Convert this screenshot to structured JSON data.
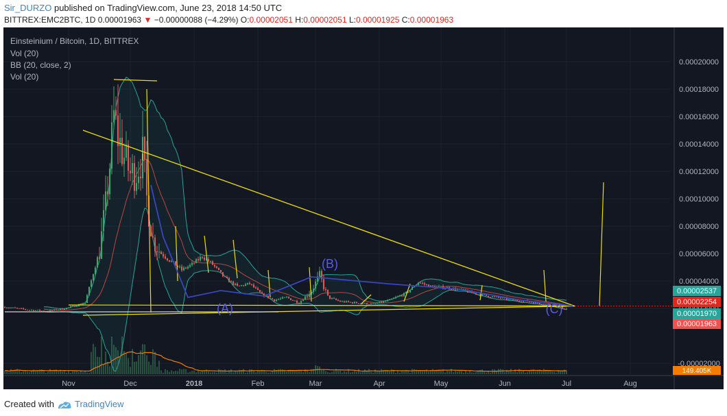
{
  "header": {
    "author": "Sir_DURZO",
    "published_text": "published on TradingView.com, June 23, 2018 14:50 UTC"
  },
  "ticker": {
    "symbol": "BITTREX:EMC2BTC, 1D",
    "last": "0.00001963",
    "change": "−0.00000088 (−4.29%)",
    "o_label": "O:",
    "o": "0.00002051",
    "h_label": "H:",
    "h": "0.00002051",
    "l_label": "L:",
    "l": "0.00001925",
    "c_label": "C:",
    "c": "0.00001963",
    "down_color": "#e0281f"
  },
  "legend": {
    "title": "Einsteinium / Bitcoin, 1D, BITTREX",
    "vol1": "Vol (20)",
    "bb": "BB (20, close, 2)",
    "vol2": "Vol (20)"
  },
  "footer": {
    "created_with": "Created with",
    "brand": "TradingView"
  },
  "chart_data": {
    "type": "line",
    "title": "Einsteinium / Bitcoin, 1D, BITTREX",
    "x_ticks": [
      "Nov",
      "Dec",
      "2018",
      "Feb",
      "Mar",
      "Apr",
      "May",
      "Jun",
      "Jul",
      "Aug"
    ],
    "y_ticks": [
      "0.00020000",
      "0.00018000",
      "0.00016000",
      "0.00014000",
      "0.00012000",
      "0.00010000",
      "0.00008000",
      "0.00006000",
      "0.00004000",
      "0.00002000",
      "-0.00002000"
    ],
    "ylim": [
      -2.5e-05,
      0.000215
    ],
    "x_range_days": [
      -31,
      292
    ],
    "series": [
      {
        "values": [
          [
            -31,
            2.1e-05
          ],
          [
            -20,
            1.9e-05
          ],
          [
            -10,
            1.8e-05
          ],
          [
            0,
            2.05e-05
          ],
          [
            8,
            2.4e-05
          ],
          [
            15,
            6.2e-05
          ],
          [
            18,
            9.5e-05
          ],
          [
            20,
            0.000125
          ],
          [
            22,
            0.00016
          ],
          [
            24,
            0.000145
          ],
          [
            27,
            0.00013
          ],
          [
            30,
            0.000118
          ],
          [
            33,
            0.00012
          ],
          [
            36,
            0.000132
          ],
          [
            38,
            0.0001
          ],
          [
            41,
            7e-05
          ],
          [
            45,
            6e-05
          ],
          [
            50,
            5.4e-05
          ],
          [
            55,
            4.8e-05
          ],
          [
            60,
            5.2e-05
          ],
          [
            65,
            5.8e-05
          ],
          [
            70,
            5.2e-05
          ],
          [
            76,
            4.2e-05
          ],
          [
            82,
            3.6e-05
          ],
          [
            88,
            3.8e-05
          ],
          [
            94,
            3e-05
          ],
          [
            100,
            2.6e-05
          ],
          [
            106,
            2.8e-05
          ],
          [
            112,
            2.4e-05
          ],
          [
            118,
            3.3e-05
          ],
          [
            122,
            4.4e-05
          ],
          [
            126,
            2.8e-05
          ],
          [
            132,
            2.5e-05
          ],
          [
            140,
            2.4e-05
          ],
          [
            148,
            2.3e-05
          ],
          [
            156,
            2.6e-05
          ],
          [
            164,
            3.1e-05
          ],
          [
            170,
            3.9e-05
          ],
          [
            176,
            3.6e-05
          ],
          [
            184,
            3.5e-05
          ],
          [
            192,
            3.3e-05
          ],
          [
            200,
            3e-05
          ],
          [
            208,
            2.8e-05
          ],
          [
            216,
            2.6e-05
          ],
          [
            224,
            2.5e-05
          ],
          [
            232,
            2.3e-05
          ],
          [
            238,
            2.1e-05
          ],
          [
            242,
            1.96e-05
          ]
        ]
      }
    ],
    "price_labels": [
      {
        "value": "0.00002537",
        "color": "#26a69a"
      },
      {
        "value": "0.00002254",
        "color": "#e0281f"
      },
      {
        "value": "0.00001970",
        "color": "#26a69a"
      },
      {
        "value": "0.00001963",
        "color": "#ef5350"
      }
    ],
    "volume_label": "149.405K",
    "volume_color": "#f57c00",
    "annotations": [
      "(A)",
      "(B)",
      "(C)"
    ],
    "annotation_color": "#5a5ae6",
    "drawing_color": "#f0e000",
    "background": "#131722"
  }
}
